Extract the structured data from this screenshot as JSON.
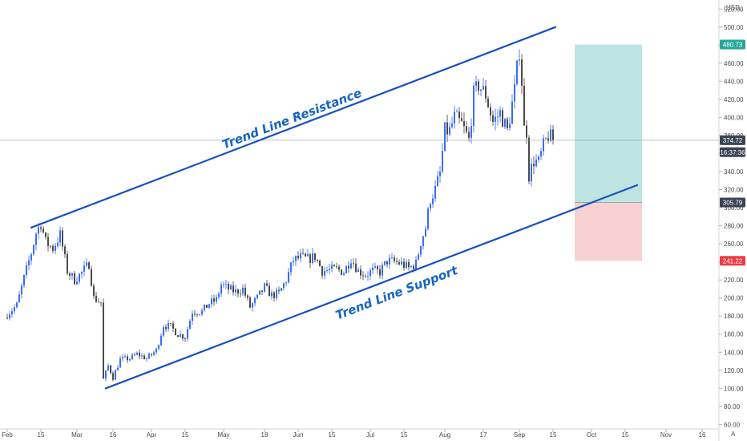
{
  "chart_data": {
    "type": "candlestick",
    "currency_label": "USD",
    "corner_label": "A",
    "y_ticks": [
      60,
      80,
      100,
      120,
      140,
      160,
      180,
      200,
      220,
      240,
      260,
      280,
      300,
      320,
      340,
      360,
      380,
      400,
      420,
      440,
      460,
      480,
      500,
      520
    ],
    "x_ticks": [
      {
        "label": "Feb",
        "date": "2020-02-01"
      },
      {
        "label": "15",
        "date": "2020-02-15"
      },
      {
        "label": "Mar",
        "date": "2020-03-01"
      },
      {
        "label": "16",
        "date": "2020-03-16"
      },
      {
        "label": "Apr",
        "date": "2020-04-01"
      },
      {
        "label": "15",
        "date": "2020-04-15"
      },
      {
        "label": "May",
        "date": "2020-05-01"
      },
      {
        "label": "18",
        "date": "2020-05-18"
      },
      {
        "label": "Jun",
        "date": "2020-06-01"
      },
      {
        "label": "15",
        "date": "2020-06-15"
      },
      {
        "label": "Jul",
        "date": "2020-07-01"
      },
      {
        "label": "15",
        "date": "2020-07-15"
      },
      {
        "label": "Aug",
        "date": "2020-08-01"
      },
      {
        "label": "17",
        "date": "2020-08-17"
      },
      {
        "label": "Sep",
        "date": "2020-09-01"
      },
      {
        "label": "15",
        "date": "2020-09-15"
      },
      {
        "label": "Oct",
        "date": "2020-10-01"
      },
      {
        "label": "15",
        "date": "2020-10-15"
      },
      {
        "label": "Nov",
        "date": "2020-11-01"
      },
      {
        "label": "16",
        "date": "2020-11-16"
      }
    ],
    "ylim": [
      55,
      530
    ],
    "xlim": [
      "2020-01-29",
      "2020-11-23"
    ],
    "closes": [
      {
        "date": "2020-02-01",
        "close": 182
      },
      {
        "date": "2020-02-05",
        "close": 192
      },
      {
        "date": "2020-02-08",
        "close": 222
      },
      {
        "date": "2020-02-11",
        "close": 250
      },
      {
        "date": "2020-02-13",
        "close": 272
      },
      {
        "date": "2020-02-15",
        "close": 283
      },
      {
        "date": "2020-02-17",
        "close": 262
      },
      {
        "date": "2020-02-20",
        "close": 255
      },
      {
        "date": "2020-02-23",
        "close": 270
      },
      {
        "date": "2020-02-26",
        "close": 230
      },
      {
        "date": "2020-02-29",
        "close": 220
      },
      {
        "date": "2020-03-03",
        "close": 228
      },
      {
        "date": "2020-03-06",
        "close": 238
      },
      {
        "date": "2020-03-08",
        "close": 200
      },
      {
        "date": "2020-03-11",
        "close": 195
      },
      {
        "date": "2020-03-12",
        "close": 110
      },
      {
        "date": "2020-03-14",
        "close": 125
      },
      {
        "date": "2020-03-16",
        "close": 112
      },
      {
        "date": "2020-03-19",
        "close": 132
      },
      {
        "date": "2020-03-23",
        "close": 133
      },
      {
        "date": "2020-03-26",
        "close": 138
      },
      {
        "date": "2020-03-30",
        "close": 133
      },
      {
        "date": "2020-04-03",
        "close": 142
      },
      {
        "date": "2020-04-06",
        "close": 170
      },
      {
        "date": "2020-04-09",
        "close": 168
      },
      {
        "date": "2020-04-12",
        "close": 160
      },
      {
        "date": "2020-04-15",
        "close": 157
      },
      {
        "date": "2020-04-18",
        "close": 185
      },
      {
        "date": "2020-04-22",
        "close": 185
      },
      {
        "date": "2020-04-25",
        "close": 194
      },
      {
        "date": "2020-04-28",
        "close": 198
      },
      {
        "date": "2020-04-30",
        "close": 215
      },
      {
        "date": "2020-05-03",
        "close": 210
      },
      {
        "date": "2020-05-06",
        "close": 207
      },
      {
        "date": "2020-05-09",
        "close": 210
      },
      {
        "date": "2020-05-12",
        "close": 190
      },
      {
        "date": "2020-05-15",
        "close": 200
      },
      {
        "date": "2020-05-18",
        "close": 212
      },
      {
        "date": "2020-05-21",
        "close": 203
      },
      {
        "date": "2020-05-24",
        "close": 205
      },
      {
        "date": "2020-05-27",
        "close": 220
      },
      {
        "date": "2020-05-30",
        "close": 242
      },
      {
        "date": "2020-06-02",
        "close": 245
      },
      {
        "date": "2020-06-05",
        "close": 243
      },
      {
        "date": "2020-06-08",
        "close": 246
      },
      {
        "date": "2020-06-11",
        "close": 230
      },
      {
        "date": "2020-06-14",
        "close": 231
      },
      {
        "date": "2020-06-17",
        "close": 232
      },
      {
        "date": "2020-06-20",
        "close": 229
      },
      {
        "date": "2020-06-23",
        "close": 244
      },
      {
        "date": "2020-06-26",
        "close": 230
      },
      {
        "date": "2020-06-29",
        "close": 226
      },
      {
        "date": "2020-07-02",
        "close": 230
      },
      {
        "date": "2020-07-05",
        "close": 229
      },
      {
        "date": "2020-07-08",
        "close": 241
      },
      {
        "date": "2020-07-11",
        "close": 240
      },
      {
        "date": "2020-07-14",
        "close": 238
      },
      {
        "date": "2020-07-17",
        "close": 233
      },
      {
        "date": "2020-07-20",
        "close": 238
      },
      {
        "date": "2020-07-22",
        "close": 262
      },
      {
        "date": "2020-07-24",
        "close": 278
      },
      {
        "date": "2020-07-26",
        "close": 310
      },
      {
        "date": "2020-07-28",
        "close": 320
      },
      {
        "date": "2020-07-30",
        "close": 338
      },
      {
        "date": "2020-08-01",
        "close": 385
      },
      {
        "date": "2020-08-03",
        "close": 385
      },
      {
        "date": "2020-08-05",
        "close": 400
      },
      {
        "date": "2020-08-08",
        "close": 392
      },
      {
        "date": "2020-08-11",
        "close": 375
      },
      {
        "date": "2020-08-13",
        "close": 425
      },
      {
        "date": "2020-08-15",
        "close": 436
      },
      {
        "date": "2020-08-18",
        "close": 425
      },
      {
        "date": "2020-08-21",
        "close": 395
      },
      {
        "date": "2020-08-24",
        "close": 405
      },
      {
        "date": "2020-08-27",
        "close": 385
      },
      {
        "date": "2020-08-30",
        "close": 430
      },
      {
        "date": "2020-09-01",
        "close": 475
      },
      {
        "date": "2020-09-02",
        "close": 440
      },
      {
        "date": "2020-09-03",
        "close": 387
      },
      {
        "date": "2020-09-04",
        "close": 385
      },
      {
        "date": "2020-09-05",
        "close": 336
      },
      {
        "date": "2020-09-07",
        "close": 352
      },
      {
        "date": "2020-09-09",
        "close": 350
      },
      {
        "date": "2020-09-11",
        "close": 368
      },
      {
        "date": "2020-09-13",
        "close": 380
      },
      {
        "date": "2020-09-15",
        "close": 374.72
      }
    ],
    "trendlines": [
      {
        "name": "resistance",
        "label": "Trend Line Resistance",
        "color": "#1550c0",
        "from": {
          "date": "2020-02-11",
          "price": 278
        },
        "to": {
          "date": "2020-09-16",
          "price": 500
        }
      },
      {
        "name": "support",
        "label": "Trend Line Support",
        "color": "#1550c0",
        "from": {
          "date": "2020-03-13",
          "price": 100
        },
        "to": {
          "date": "2020-10-20",
          "price": 325
        }
      }
    ],
    "position": {
      "start_date": "2020-09-24",
      "end_date": "2020-10-22",
      "entry": 305.79,
      "target": 480.73,
      "stop": 241.22,
      "profit_color": "#b2dfdb",
      "loss_color": "#f6c9c9"
    },
    "price_labels": [
      {
        "name": "target-price-tag",
        "text": "480.73",
        "price": 480.73,
        "color": "#26a69a"
      },
      {
        "name": "current-price-tag",
        "text": "374.72",
        "price": 374.72,
        "color": "#3a4352"
      },
      {
        "name": "countdown-tag",
        "text": "16:37:36",
        "price": 361.5,
        "color": "#3a4352"
      },
      {
        "name": "entry-price-tag",
        "text": "305.79",
        "price": 305.79,
        "color": "#3a4352"
      },
      {
        "name": "stop-price-tag",
        "text": "241.22",
        "price": 241.22,
        "color": "#ef3b44"
      }
    ],
    "current_price": 374.72,
    "up_color": "#2962ff",
    "down_color": "#3d3d3d"
  }
}
